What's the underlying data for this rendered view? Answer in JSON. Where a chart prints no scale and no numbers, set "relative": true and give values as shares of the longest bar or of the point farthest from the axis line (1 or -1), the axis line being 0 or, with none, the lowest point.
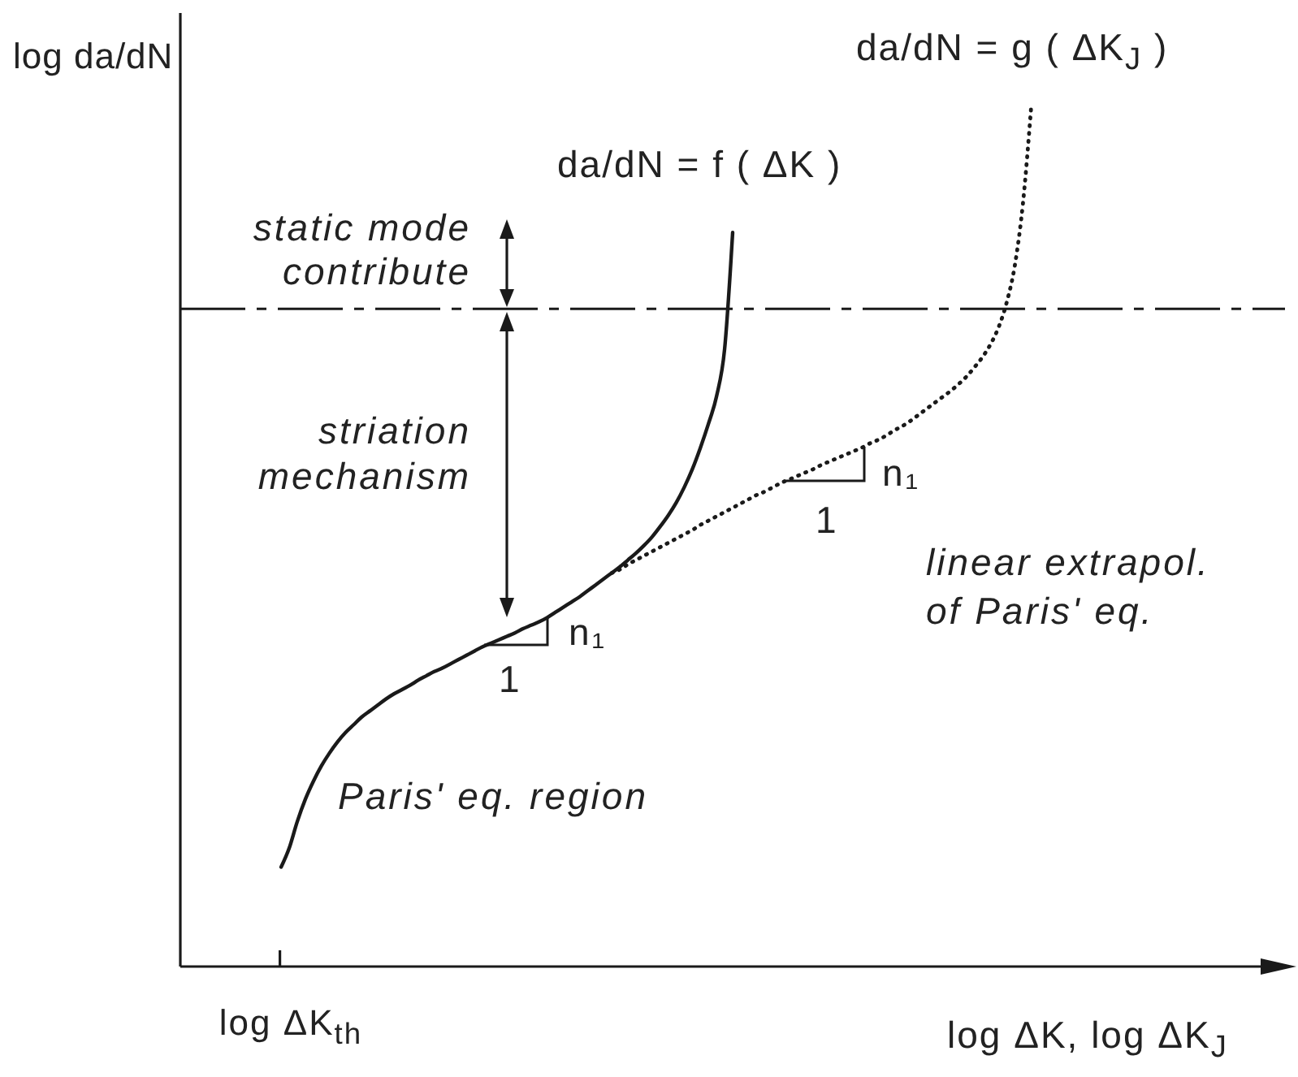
{
  "chart_data": {
    "type": "line",
    "relative": true,
    "marker": "none",
    "xlabel": "log ΔK, log ΔK$_{J}$",
    "ylabel": "log da/dN",
    "categories": [
      null,
      null,
      null,
      null,
      null,
      null,
      null,
      null,
      null,
      null,
      null,
      null,
      null,
      null,
      null,
      null,
      null,
      null,
      null,
      null,
      null,
      null,
      null,
      null,
      null,
      null,
      null,
      null,
      null,
      null,
      null,
      null,
      null,
      null,
      null,
      null,
      null,
      null,
      null,
      null,
      null,
      null,
      null,
      null,
      null,
      null,
      null,
      null,
      null,
      null,
      null,
      null,
      null,
      null,
      null,
      null,
      null,
      null,
      null,
      null,
      null,
      null,
      null,
      null,
      null,
      null,
      null,
      null,
      null,
      null,
      null,
      null,
      null,
      null,
      null,
      null,
      null,
      null,
      null,
      null,
      null,
      null,
      null,
      null,
      null,
      null,
      null,
      null,
      null,
      null,
      null,
      null,
      null,
      null,
      null,
      null,
      null,
      null,
      null,
      null,
      null,
      null,
      null,
      null,
      null,
      null,
      null,
      null,
      null,
      null,
      null,
      null,
      null,
      null,
      null,
      null,
      null,
      null,
      null,
      null,
      null,
      null,
      null,
      null,
      null,
      null,
      null,
      null,
      null,
      null,
      null,
      null,
      null,
      null,
      null,
      null,
      null
    ],
    "series": [
      {
        "name": "da/dN = f ( ΔK )",
        "color": "#1a1a1a",
        "line_style": "solid",
        "values": [
          null,
          null,
          null,
          null,
          null,
          null,
          null,
          null,
          null,
          null,
          null,
          null,
          0.116,
          0.138,
          0.169,
          0.195,
          0.216,
          0.234,
          0.249,
          0.262,
          0.273,
          0.282,
          0.291,
          0.298,
          0.305,
          0.312,
          0.318,
          0.323,
          0.328,
          0.334,
          0.339,
          0.344,
          0.348,
          0.353,
          0.358,
          0.363,
          0.368,
          0.373,
          0.377,
          0.381,
          0.385,
          0.389,
          0.394,
          0.398,
          0.402,
          0.407,
          0.413,
          0.419,
          0.425,
          0.431,
          0.438,
          0.445,
          0.452,
          0.459,
          0.466,
          0.474,
          0.482,
          0.491,
          0.501,
          0.513,
          0.526,
          0.541,
          0.559,
          0.58,
          0.605,
          0.633,
          0.665,
          0.72,
          0.856,
          null,
          null,
          null,
          null,
          null,
          null,
          null,
          null,
          null,
          null,
          null,
          null,
          null,
          null,
          null,
          null,
          null,
          null,
          null,
          null,
          null,
          null,
          null,
          null,
          null,
          null,
          null,
          null,
          null,
          null,
          null,
          null,
          null,
          null,
          null,
          null,
          null,
          null,
          null,
          null,
          null,
          null,
          null,
          null,
          null,
          null,
          null,
          null,
          null,
          null,
          null,
          null,
          null,
          null,
          null,
          null,
          null,
          null,
          null,
          null,
          null,
          null,
          null,
          null,
          null,
          null,
          null,
          null
        ]
      },
      {
        "name": "da/dN = g ( ΔK$_{J}$ )",
        "color": "#1a1a1a",
        "line_style": "dotted",
        "values": [
          null,
          null,
          null,
          null,
          null,
          null,
          null,
          null,
          null,
          null,
          null,
          null,
          null,
          null,
          null,
          null,
          null,
          null,
          null,
          null,
          null,
          null,
          null,
          null,
          null,
          null,
          null,
          null,
          null,
          null,
          null,
          null,
          null,
          null,
          null,
          null,
          null,
          null,
          null,
          null,
          null,
          null,
          null,
          null,
          null,
          null,
          null,
          null,
          null,
          null,
          null,
          null,
          null,
          0.459,
          0.463,
          0.469,
          0.474,
          0.479,
          0.484,
          0.489,
          0.494,
          0.499,
          0.504,
          0.509,
          0.515,
          0.52,
          0.525,
          0.53,
          0.535,
          0.54,
          0.545,
          0.55,
          0.554,
          0.559,
          0.564,
          0.568,
          0.572,
          0.576,
          0.58,
          0.585,
          0.589,
          0.593,
          0.597,
          0.601,
          0.605,
          0.61,
          0.614,
          0.619,
          0.625,
          0.63,
          0.636,
          0.643,
          0.65,
          0.657,
          0.664,
          0.671,
          0.679,
          0.688,
          0.699,
          0.711,
          0.726,
          0.746,
          0.775,
          0.818,
          0.89,
          1.0,
          null,
          null,
          null,
          null,
          null,
          null,
          null,
          null,
          null,
          null,
          null,
          null,
          null,
          null,
          null,
          null,
          null,
          null,
          null,
          null,
          null,
          null,
          null,
          null,
          null,
          null,
          null,
          null,
          null,
          null,
          null
        ]
      }
    ],
    "ref_lines": [
      {
        "axis": "y",
        "value": 0.767,
        "color": "#1a1a1a",
        "line_style": "dashed"
      }
    ],
    "annotations": [
      "static mode contribute",
      "striation mechanism",
      "Paris' eq. region",
      "linear extrapol. of Paris' eq.",
      "n₁",
      "1",
      "n₁",
      "1",
      "log ΔK$_{th}$"
    ]
  }
}
